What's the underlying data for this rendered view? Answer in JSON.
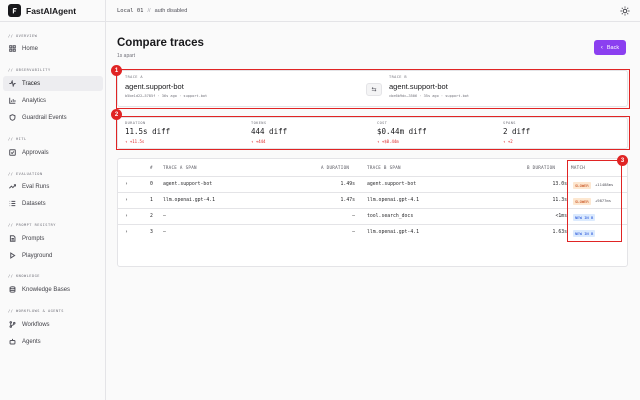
{
  "app": {
    "name": "FastAIAgent"
  },
  "topbar": {
    "env": "Local 01",
    "separator": "//",
    "auth": "auth disabled"
  },
  "sidebar": {
    "sections": [
      {
        "label": "// OVERVIEW"
      },
      {
        "label": "// OBSERVABILITY"
      },
      {
        "label": "// HITL"
      },
      {
        "label": "// EVALUATION"
      },
      {
        "label": "// PROMPT REGISTRY"
      },
      {
        "label": "// KNOWLEDGE"
      },
      {
        "label": "// WORKFLOWS & AGENTS"
      }
    ],
    "items": [
      {
        "label": "Home",
        "icon": "grid-icon"
      },
      {
        "label": "Traces",
        "icon": "activity-icon",
        "active": true
      },
      {
        "label": "Analytics",
        "icon": "bar-chart-icon"
      },
      {
        "label": "Guardrail Events",
        "icon": "shield-icon"
      },
      {
        "label": "Approvals",
        "icon": "check-square-icon"
      },
      {
        "label": "Eval Runs",
        "icon": "trending-up-icon"
      },
      {
        "label": "Datasets",
        "icon": "list-icon"
      },
      {
        "label": "Prompts",
        "icon": "file-icon"
      },
      {
        "label": "Playground",
        "icon": "play-icon"
      },
      {
        "label": "Knowledge Bases",
        "icon": "database-icon"
      },
      {
        "label": "Workflows",
        "icon": "git-branch-icon"
      },
      {
        "label": "Agents",
        "icon": "bot-icon"
      }
    ]
  },
  "page": {
    "title": "Compare traces",
    "subtitle": "1s apart",
    "back_label": "Back"
  },
  "annotations": [
    "1",
    "2",
    "3"
  ],
  "trace_a": {
    "label": "TRACE A",
    "name": "agent.support-bot",
    "meta": "b5be1d22…5785f · 36s ago · support-bot"
  },
  "trace_b": {
    "label": "TRACE B",
    "name": "agent.support-bot",
    "meta": "cbe6b9dc…3506 · 35s ago · support-bot"
  },
  "stats": [
    {
      "label": "DURATION",
      "value": "11.5s diff",
      "delta": "↑ +11.5s"
    },
    {
      "label": "TOKENS",
      "value": "444 diff",
      "delta": "↑ +444"
    },
    {
      "label": "COST",
      "value": "$0.44m diff",
      "delta": "↑ +$0.44m"
    },
    {
      "label": "SPANS",
      "value": "2 diff",
      "delta": "↑ +2"
    }
  ],
  "table": {
    "headers": [
      "#",
      "TRACE A SPAN",
      "A DURATION",
      "TRACE B SPAN",
      "B DURATION",
      "MATCH"
    ],
    "rows": [
      {
        "chevron": "›",
        "index": "0",
        "a_span": "agent.support-bot",
        "a_dur": "1.49s",
        "b_span": "agent.support-bot",
        "b_dur": "13.0s",
        "match": "SLOWER",
        "match_type": "slower",
        "extra": "+11488ms"
      },
      {
        "chevron": "›",
        "index": "1",
        "a_span": "llm.openai.gpt-4.1",
        "a_dur": "1.47s",
        "b_span": "llm.openai.gpt-4.1",
        "b_dur": "11.3s",
        "match": "SLOWER",
        "match_type": "slower",
        "extra": "+9877ms"
      },
      {
        "chevron": "›",
        "index": "2",
        "a_span": "—",
        "a_dur": "—",
        "b_span": "tool.search_docs",
        "b_dur": "<1ms",
        "match": "NEW IN B",
        "match_type": "new",
        "extra": ""
      },
      {
        "chevron": "›",
        "index": "3",
        "a_span": "—",
        "a_dur": "—",
        "b_span": "llm.openai.gpt-4.1",
        "b_dur": "1.63s",
        "match": "NEW IN B",
        "match_type": "new",
        "extra": ""
      }
    ]
  },
  "colors": {
    "accent": "#8b3ff0",
    "annotation": "#e02424",
    "delta": "#dc2626",
    "slower_bg": "#fde7d0",
    "new_bg": "#dbeafe"
  }
}
